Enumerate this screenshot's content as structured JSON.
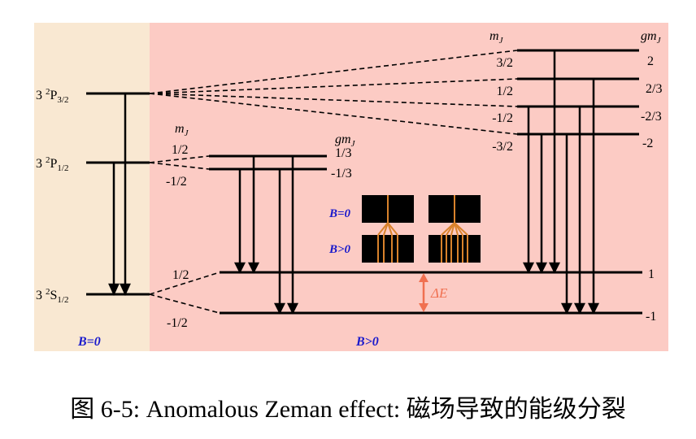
{
  "panels": {
    "left_label": "B=0",
    "right_label": "B>0",
    "left_color": "#f9e8d2",
    "right_color": "#fccbc4",
    "label_color": "#1a1acc"
  },
  "levels": {
    "p32": {
      "prefix": "3 ",
      "sup": "2",
      "main": "P",
      "sub": "3/2"
    },
    "p12": {
      "prefix": "3 ",
      "sup": "2",
      "main": "P",
      "sub": "1/2"
    },
    "s12": {
      "prefix": "3 ",
      "sup": "2",
      "main": "S",
      "sub": "1/2"
    }
  },
  "headers": {
    "mj": "m",
    "mj_sub": "J",
    "gmj": "gm",
    "gmj_sub": "J"
  },
  "p32_split": {
    "mj": [
      "3/2",
      "1/2",
      "-1/2",
      "-3/2"
    ],
    "gmj": [
      "2",
      "2/3",
      "-2/3",
      "-2"
    ]
  },
  "p12_split": {
    "mj": [
      "1/2",
      "-1/2"
    ],
    "gmj": [
      "1/3",
      "-1/3"
    ]
  },
  "s12_split": {
    "mj": [
      "1/2",
      "-1/2"
    ],
    "gmj": [
      "1",
      "-1"
    ]
  },
  "delta_e": "ΔE",
  "delta_color": "#f07050",
  "inset": {
    "label_b0": "B=0",
    "label_bpos": "B>0",
    "line_color": "#d9822b"
  },
  "caption": "图 6-5: Anomalous Zeman effect: 磁场导致的能级分裂"
}
